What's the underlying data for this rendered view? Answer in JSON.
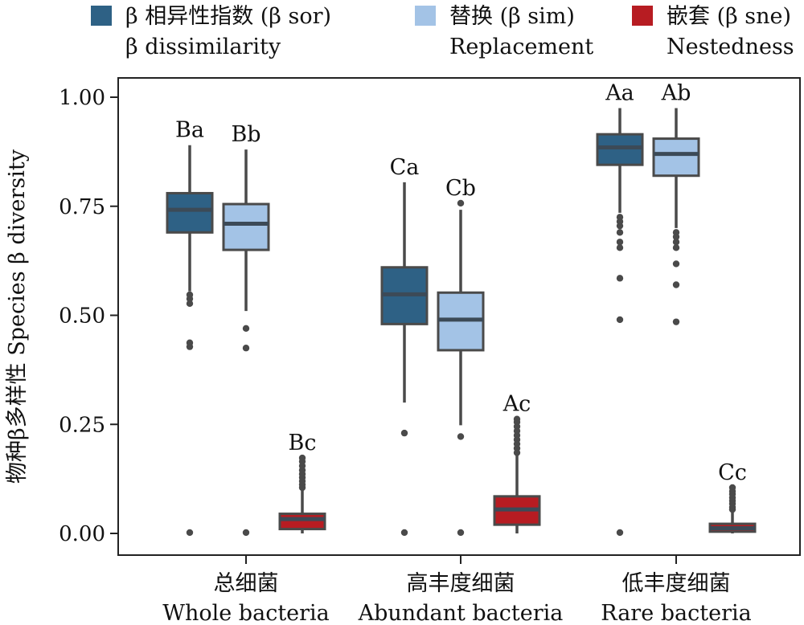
{
  "chart_data": {
    "type": "box",
    "ylabel": "物种β多样性 Species β diversity",
    "ylim": [
      0,
      1.05
    ],
    "yticks": [
      "0.00",
      "0.25",
      "0.50",
      "0.75",
      "1.00"
    ],
    "ytick_values": [
      0,
      0.25,
      0.5,
      0.75,
      1.0
    ],
    "categories": [
      {
        "cn": "总细菌",
        "en": "Whole bacteria"
      },
      {
        "cn": "高丰度细菌",
        "en": "Abundant bacteria"
      },
      {
        "cn": "低丰度细菌",
        "en": "Rare bacteria"
      }
    ],
    "legend_position": "top",
    "series": [
      {
        "name": "β 相异性指数 (β sor)",
        "name_en": "β dissimilarity",
        "color": "#2e6185",
        "median_color": "#3c4a57",
        "boxes": [
          {
            "q1": 0.69,
            "median": 0.742,
            "q3": 0.78,
            "whisker_low": 0.555,
            "whisker_high": 0.89,
            "outliers": [
              0.547,
              0.538,
              0.527,
              0.437,
              0.428,
              0.002
            ],
            "label": "Ba"
          },
          {
            "q1": 0.48,
            "median": 0.548,
            "q3": 0.61,
            "whisker_low": 0.3,
            "whisker_high": 0.805,
            "outliers": [
              0.23,
              0.002
            ],
            "label": "Ca"
          },
          {
            "q1": 0.845,
            "median": 0.885,
            "q3": 0.915,
            "whisker_low": 0.735,
            "whisker_high": 0.975,
            "outliers": [
              0.725,
              0.715,
              0.705,
              0.69,
              0.668,
              0.655,
              0.585,
              0.49,
              0.002
            ],
            "label": "Aa"
          }
        ]
      },
      {
        "name": "替换 (β sim)",
        "name_en": "Replacement",
        "color": "#a3c3e6",
        "median_color": "#3c4a57",
        "boxes": [
          {
            "q1": 0.65,
            "median": 0.71,
            "q3": 0.755,
            "whisker_low": 0.51,
            "whisker_high": 0.88,
            "outliers": [
              0.47,
              0.425,
              0.002
            ],
            "label": "Bb"
          },
          {
            "q1": 0.42,
            "median": 0.49,
            "q3": 0.552,
            "whisker_low": 0.248,
            "whisker_high": 0.742,
            "outliers": [
              0.757,
              0.222,
              0.002
            ],
            "label": "Cb"
          },
          {
            "q1": 0.82,
            "median": 0.87,
            "q3": 0.905,
            "whisker_low": 0.7,
            "whisker_high": 0.975,
            "outliers": [
              0.69,
              0.68,
              0.668,
              0.655,
              0.618,
              0.57,
              0.485
            ],
            "label": "Ab"
          }
        ]
      },
      {
        "name": "嵌套 (β sne)",
        "name_en": "Nestedness",
        "color": "#b71c22",
        "median_color": "#3c4a57",
        "boxes": [
          {
            "q1": 0.01,
            "median": 0.033,
            "q3": 0.045,
            "whisker_low": 0.0,
            "whisker_high": 0.1,
            "outliers": [
              0.105,
              0.112,
              0.12,
              0.128,
              0.136,
              0.145,
              0.155,
              0.165,
              0.173
            ],
            "label": "Bc"
          },
          {
            "q1": 0.02,
            "median": 0.055,
            "q3": 0.085,
            "whisker_low": 0.0,
            "whisker_high": 0.18,
            "outliers": [
              0.185,
              0.195,
              0.205,
              0.215,
              0.225,
              0.235,
              0.245,
              0.255,
              0.262
            ],
            "label": "Ac"
          },
          {
            "q1": 0.004,
            "median": 0.012,
            "q3": 0.022,
            "whisker_low": 0.0,
            "whisker_high": 0.05,
            "outliers": [
              0.055,
              0.06,
              0.068,
              0.075,
              0.082,
              0.09,
              0.097,
              0.105
            ],
            "label": "Cc"
          }
        ]
      }
    ]
  }
}
